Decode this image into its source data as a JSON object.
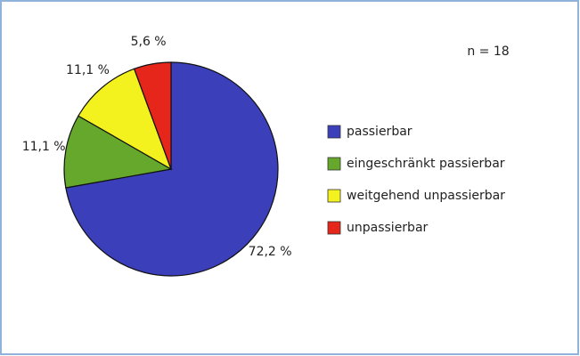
{
  "chart_data": {
    "type": "pie",
    "annotation": "n = 18",
    "categories": [
      "passierbar",
      "eingeschränkt passierbar",
      "weitgehend unpassierbar",
      "unpassierbar"
    ],
    "values": [
      72.2,
      11.1,
      11.1,
      5.6
    ],
    "value_labels": [
      "72,2 %",
      "11,1 %",
      "11,1 %",
      "5,6 %"
    ],
    "colors": [
      "#3b3fba",
      "#66a82c",
      "#f4f21e",
      "#e6261b"
    ],
    "legend": "right"
  }
}
